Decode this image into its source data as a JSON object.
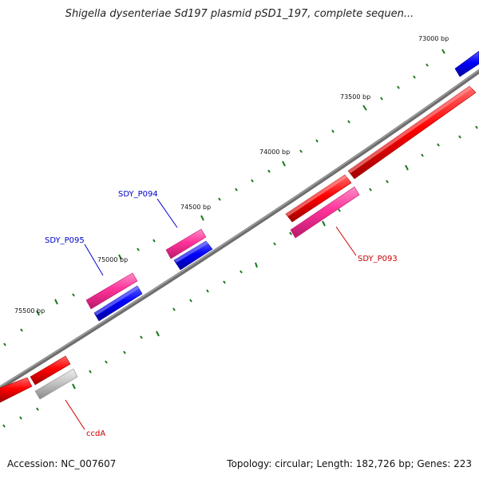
{
  "title": "Shigella dysenteriae Sd197 plasmid pSD1_197, complete sequen...",
  "footer": {
    "accession": "Accession: NC_007607",
    "summary": "Topology: circular; Length: 182,726 bp; Genes: 223"
  },
  "ticks": {
    "t73000": "73000 bp",
    "t73500": "73500 bp",
    "t74000": "74000 bp",
    "t74500": "74500 bp",
    "t75000": "75000 bp",
    "t75500": "75500 bp"
  },
  "gene_labels": {
    "sdy_p093": "SDY_P093",
    "sdy_p094": "SDY_P094",
    "sdy_p095": "SDY_P095",
    "ccda": "ccdA"
  },
  "colors": {
    "backbone": "#808080",
    "forward_cds": "#ff0000",
    "reverse_cds": "#0000ff",
    "rna_or_other": "#ff3399",
    "pseudo": "#bbbbbb",
    "tick": "#1a7a1a",
    "label_blue": "#0000cc",
    "label_red": "#cc0000"
  }
}
